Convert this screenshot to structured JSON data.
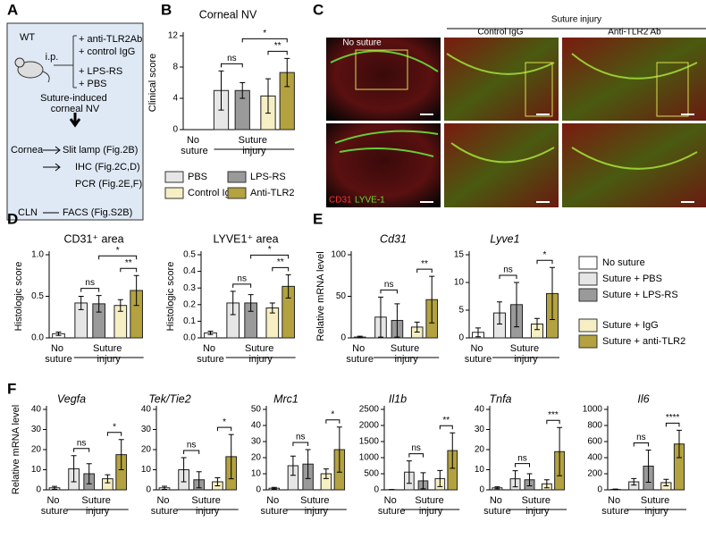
{
  "panels": [
    "A",
    "B",
    "C",
    "D",
    "E",
    "F"
  ],
  "diagram_a": {
    "mouse": "WT",
    "route": "i.p.",
    "treatments": [
      "+ anti-TLR2Ab",
      "+ control IgG",
      "+ LPS-RS",
      "+ PBS"
    ],
    "model": "Suture-induced corneal NV",
    "tissues": [
      "Cornea",
      "CLN"
    ],
    "assays": [
      "Slit lamp (Fig.2B)",
      "IHC (Fig.2C,D)",
      "PCR (Fig.2E,F)",
      "FACS (Fig.S2B)"
    ]
  },
  "images_c": {
    "group": "Suture injury",
    "columns": [
      "No suture",
      "Control IgG",
      "Anti-TLR2 Ab"
    ],
    "stain_red": "CD31",
    "stain_green": "LYVE-1"
  },
  "bar_colors": [
    "#ffffff",
    "#e6e6e6",
    "#9a9a9a",
    "#f7efc4",
    "#b3a23f"
  ],
  "legend_b": [
    "PBS",
    "LPS-RS",
    "Control IgG",
    "Anti-TLR2"
  ],
  "legend_e": [
    "No suture",
    "Suture + PBS",
    "Suture + LPS-RS",
    "Suture + IgG",
    "Suture + anti-TLR2"
  ],
  "chart_data": [
    {
      "type": "bar",
      "title": "Corneal NV",
      "ylabel": "Clinical score",
      "x_labels": [
        "No suture",
        "Suture injury"
      ],
      "ylim": [
        0,
        12
      ],
      "yticks": [
        0,
        4,
        8,
        12
      ],
      "values": [
        0,
        5,
        5,
        4.3,
        7.3
      ],
      "errors": [
        0,
        2.5,
        1,
        2.2,
        1.8
      ],
      "significance": [
        "ns",
        "**",
        "*"
      ]
    },
    {
      "type": "bar",
      "title": "CD31⁺ area",
      "ylabel": "Histologic score",
      "x_labels": [
        "No suture",
        "Suture injury"
      ],
      "ylim": [
        0,
        1.0
      ],
      "yticks": [
        {
          "value": 0,
          "label": "0.0"
        },
        0.5,
        {
          "value": 1,
          "label": "1.0"
        }
      ],
      "values": [
        0.05,
        0.42,
        0.41,
        0.39,
        0.57
      ],
      "errors": [
        0.02,
        0.08,
        0.1,
        0.07,
        0.18
      ],
      "significance": [
        "ns",
        "**",
        "*"
      ]
    },
    {
      "type": "bar",
      "title": "LYVE1⁺ area",
      "ylabel": "Histologic score",
      "x_labels": [
        "No suture",
        "Suture injury"
      ],
      "ylim": [
        0,
        0.5
      ],
      "yticks": [
        {
          "value": 0,
          "label": "0.0"
        },
        0.1,
        0.2,
        0.3,
        0.4,
        0.5
      ],
      "values": [
        0.03,
        0.21,
        0.21,
        0.18,
        0.31
      ],
      "errors": [
        0.01,
        0.07,
        0.05,
        0.03,
        0.07
      ],
      "significance": [
        "ns",
        "**",
        "*"
      ]
    },
    {
      "type": "bar",
      "title": "Cd31",
      "ylabel": "Relative mRNA level",
      "x_labels": [
        "No suture",
        "Suture injury"
      ],
      "ylim": [
        0,
        100
      ],
      "yticks": [
        0,
        50,
        100
      ],
      "values": [
        1,
        25,
        21,
        13,
        46
      ],
      "errors": [
        1,
        24,
        20,
        6,
        28
      ],
      "significance": [
        "ns",
        "**"
      ]
    },
    {
      "type": "bar",
      "title": "Lyve1",
      "x_labels": [
        "No suture",
        "Suture injury"
      ],
      "ylim": [
        0,
        15
      ],
      "yticks": [
        0,
        5,
        10,
        15
      ],
      "values": [
        1,
        4.5,
        6,
        2.5,
        8
      ],
      "errors": [
        0.8,
        2,
        4,
        1,
        4.7
      ],
      "significance": [
        "ns",
        "*"
      ]
    },
    {
      "type": "bar",
      "title": "Vegfa",
      "ylabel": "Relative mRNA level",
      "x_labels": [
        "No suture",
        "Suture injury"
      ],
      "ylim": [
        0,
        40
      ],
      "yticks": [
        0,
        10,
        20,
        30,
        40
      ],
      "values": [
        1,
        10.5,
        8,
        5.5,
        17.5
      ],
      "errors": [
        0.7,
        6.5,
        5,
        2,
        7.5
      ],
      "significance": [
        "ns",
        "*"
      ]
    },
    {
      "type": "bar",
      "title": "Tek/Tie2",
      "x_labels": [
        "No suture",
        "Suture injury"
      ],
      "ylim": [
        0,
        40
      ],
      "yticks": [
        0,
        10,
        20,
        30,
        40
      ],
      "values": [
        1,
        10,
        5,
        4,
        16.5
      ],
      "errors": [
        0.8,
        6,
        4,
        2,
        11
      ],
      "significance": [
        "ns",
        "*"
      ]
    },
    {
      "type": "bar",
      "title": "Mrc1",
      "x_labels": [
        "No suture",
        "Suture injury"
      ],
      "ylim": [
        0,
        50
      ],
      "yticks": [
        0,
        10,
        20,
        30,
        40,
        50
      ],
      "values": [
        1,
        15,
        16,
        10,
        25
      ],
      "errors": [
        0.5,
        6,
        9,
        3,
        14
      ],
      "significance": [
        "ns",
        "*"
      ]
    },
    {
      "type": "bar",
      "title": "Il1b",
      "x_labels": [
        "No suture",
        "Suture injury"
      ],
      "ylim": [
        0,
        2500
      ],
      "yticks": [
        0,
        500,
        1000,
        1500,
        2000,
        2500
      ],
      "values": [
        5,
        550,
        280,
        350,
        1220
      ],
      "errors": [
        5,
        350,
        250,
        250,
        550
      ],
      "significance": [
        "ns",
        "**"
      ]
    },
    {
      "type": "bar",
      "title": "Tnfa",
      "x_labels": [
        "No suture",
        "Suture injury"
      ],
      "ylim": [
        0,
        40
      ],
      "yticks": [
        0,
        10,
        20,
        30,
        40
      ],
      "values": [
        1,
        5.5,
        5,
        3,
        19
      ],
      "errors": [
        0.5,
        4,
        3,
        2,
        12
      ],
      "significance": [
        "ns",
        "***"
      ]
    },
    {
      "type": "bar",
      "title": "Il6",
      "x_labels": [
        "No suture",
        "Suture injury"
      ],
      "ylim": [
        0,
        1000
      ],
      "yticks": [
        0,
        200,
        400,
        600,
        800,
        1000
      ],
      "values": [
        5,
        100,
        295,
        90,
        570
      ],
      "errors": [
        5,
        40,
        200,
        40,
        170
      ],
      "significance": [
        "ns",
        "****"
      ]
    }
  ]
}
